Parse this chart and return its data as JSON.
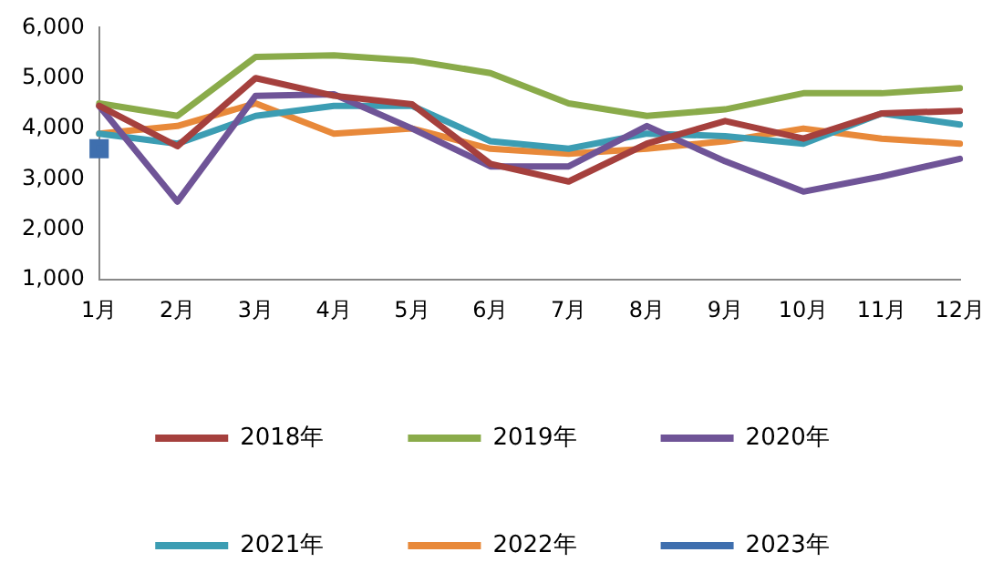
{
  "chart_data": {
    "type": "line",
    "categories": [
      "1月",
      "2月",
      "3月",
      "4月",
      "5月",
      "6月",
      "7月",
      "8月",
      "9月",
      "10月",
      "11月",
      "12月"
    ],
    "ylim": [
      1000,
      6000
    ],
    "yticks": [
      {
        "value": 1000,
        "label": "1,000"
      },
      {
        "value": 2000,
        "label": "2,000"
      },
      {
        "value": 3000,
        "label": "3,000"
      },
      {
        "value": 4000,
        "label": "4,000"
      },
      {
        "value": 5000,
        "label": "5,000"
      },
      {
        "value": 6000,
        "label": "6,000"
      }
    ],
    "grid": false,
    "legend": "bottom",
    "marker": "none",
    "line_style": "solid",
    "series": [
      {
        "name": "2018年",
        "color": "#a5403d",
        "values": [
          4450,
          3650,
          5000,
          4650,
          4480,
          3300,
          2950,
          3700,
          4150,
          3800,
          4300,
          4350
        ]
      },
      {
        "name": "2019年",
        "color": "#8aab4a",
        "values": [
          4500,
          4250,
          5420,
          5450,
          5350,
          5100,
          4500,
          4250,
          4380,
          4700,
          4700,
          4800
        ]
      },
      {
        "name": "2020年",
        "color": "#6f5497",
        "values": [
          4450,
          2550,
          4650,
          4680,
          4000,
          3250,
          3250,
          4050,
          3350,
          2750,
          3050,
          3400
        ]
      },
      {
        "name": "2021年",
        "color": "#3c9db3",
        "values": [
          3900,
          3700,
          4250,
          4450,
          4450,
          3750,
          3600,
          3900,
          3850,
          3700,
          4300,
          4080
        ]
      },
      {
        "name": "2022年",
        "color": "#e8893a",
        "values": [
          3900,
          4050,
          4500,
          3900,
          4000,
          3600,
          3500,
          3600,
          3750,
          4000,
          3800,
          3700
        ]
      },
      {
        "name": "2023年",
        "color": "#3f6fae",
        "marker": "square",
        "values": [
          3600,
          null,
          null,
          null,
          null,
          null,
          null,
          null,
          null,
          null,
          null,
          null
        ]
      }
    ]
  }
}
